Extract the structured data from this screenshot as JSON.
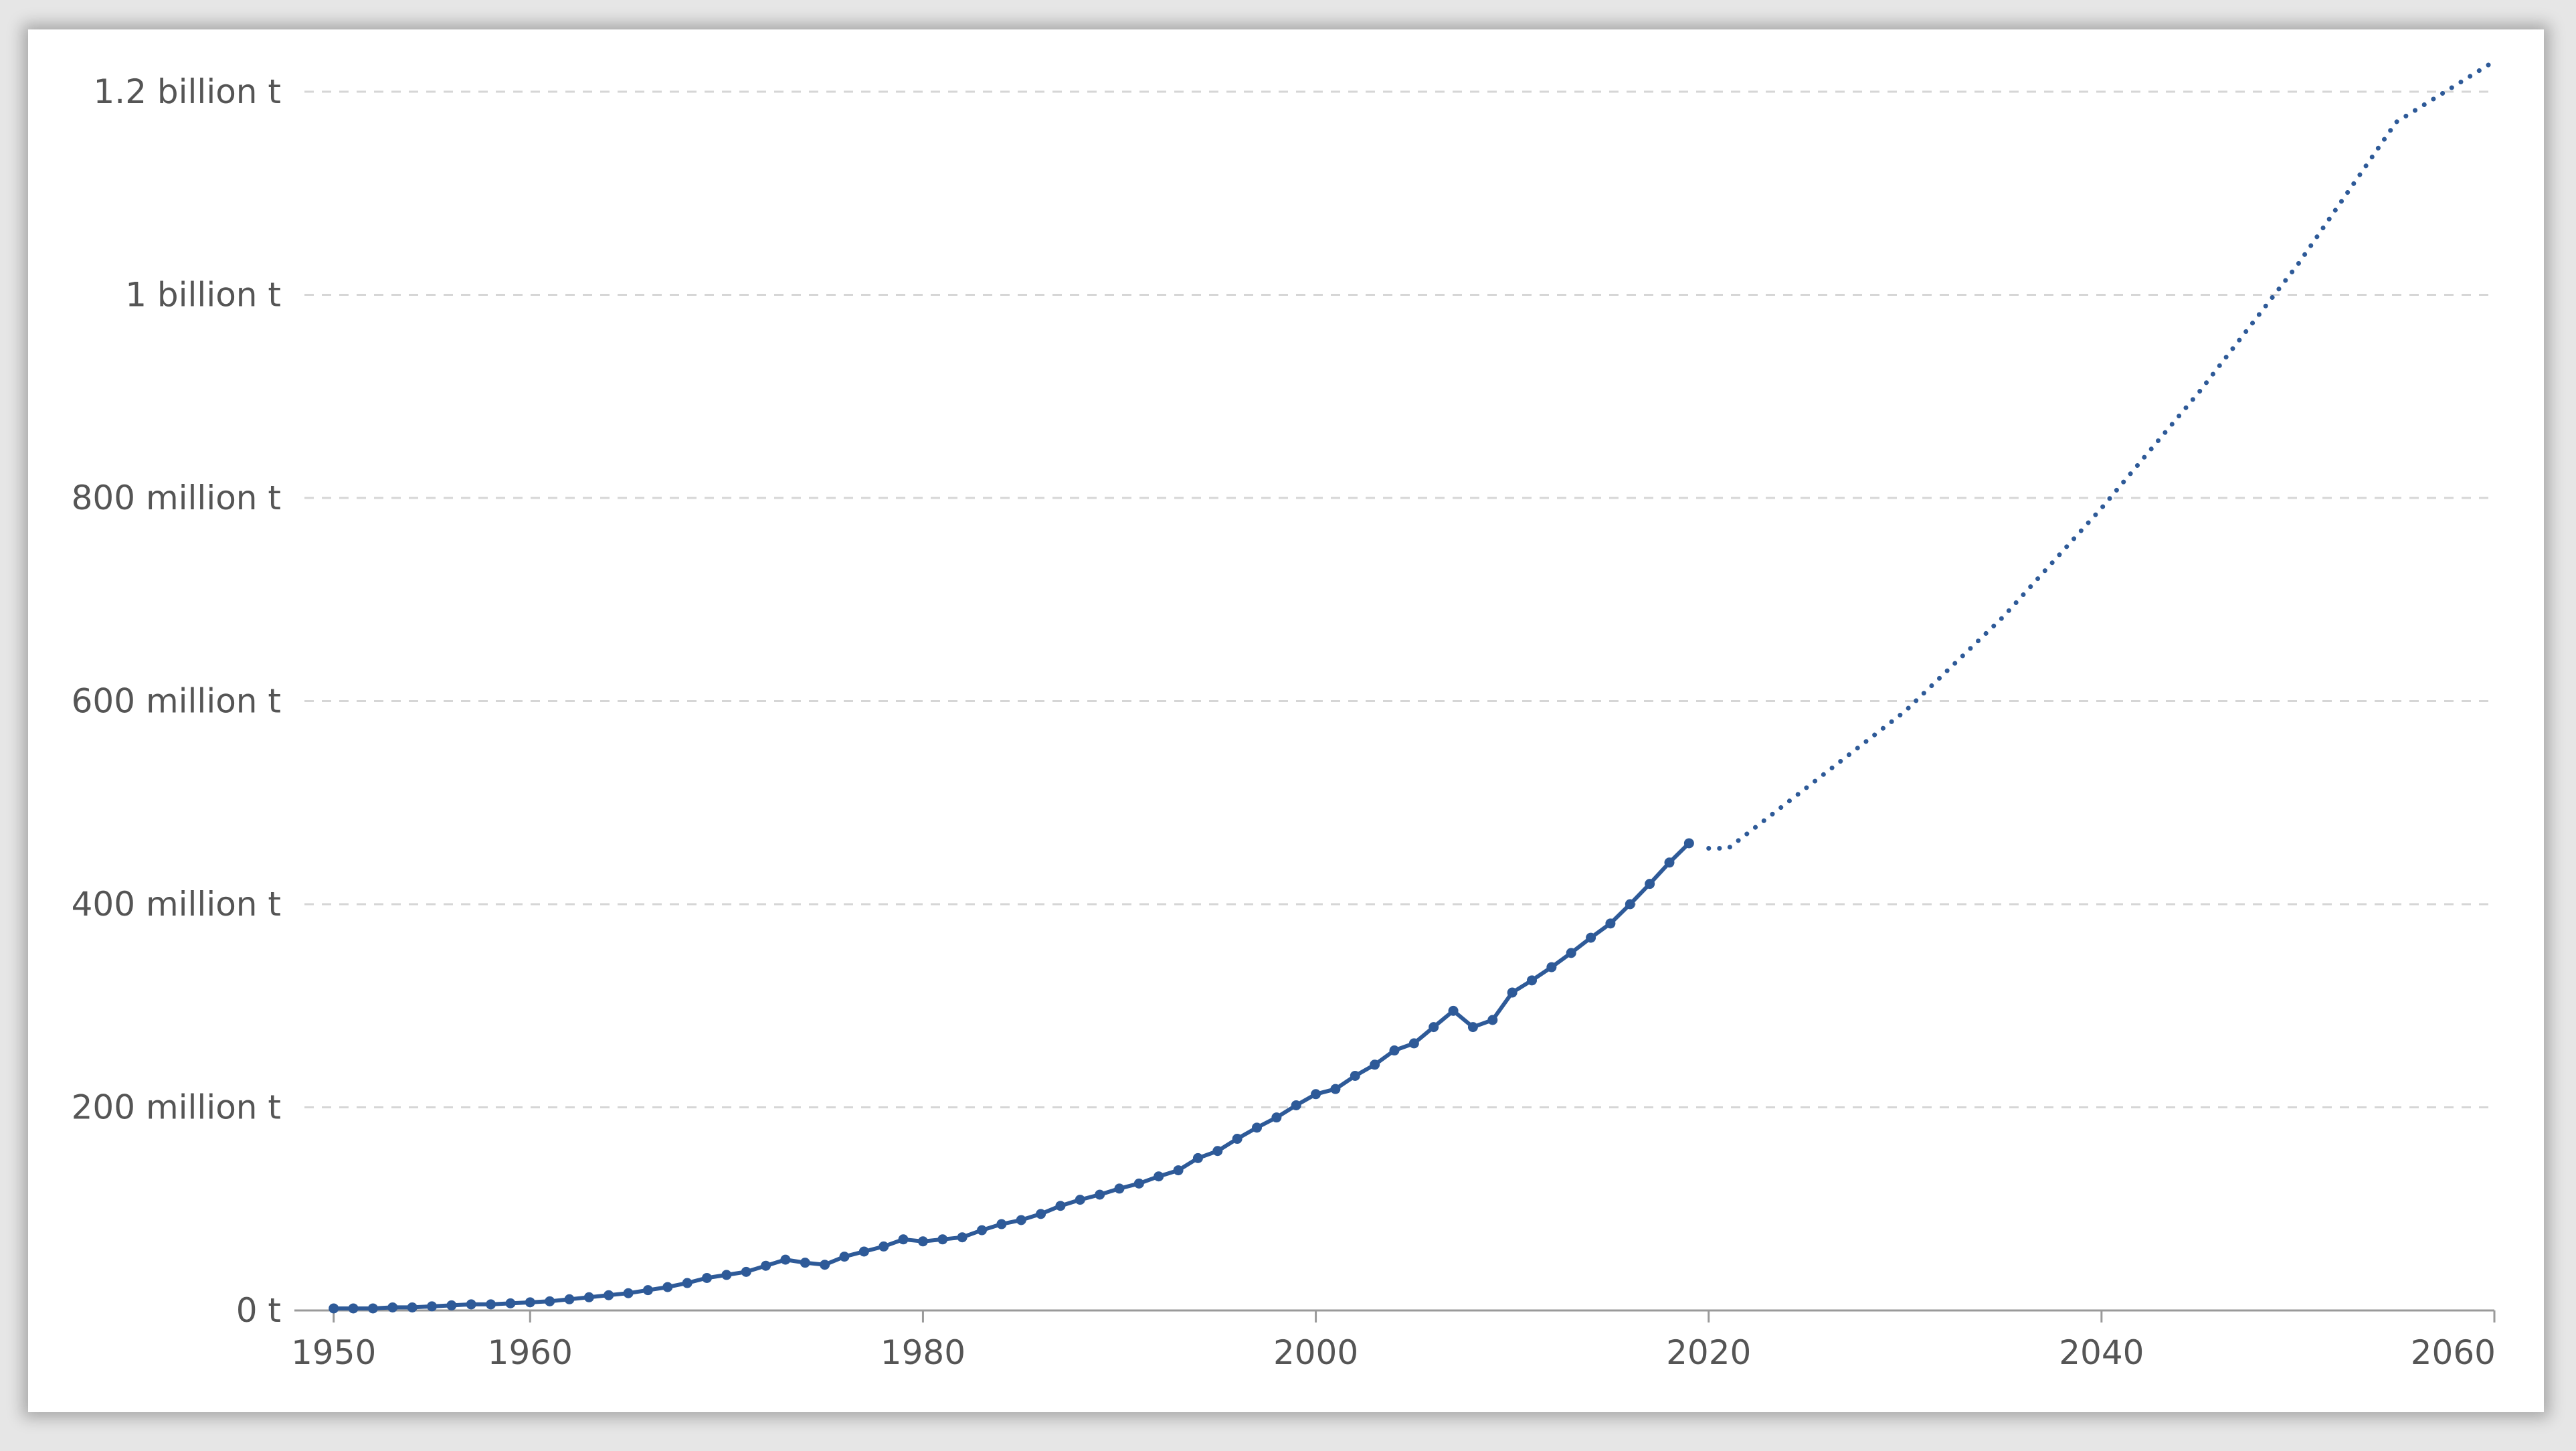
{
  "chart_data": {
    "type": "line",
    "title": "",
    "xlabel": "",
    "ylabel": "",
    "xlim": [
      1948,
      2060
    ],
    "ylim": [
      0,
      1200000000
    ],
    "grid": true,
    "legend": "none",
    "y_ticks": [
      {
        "value": 0,
        "label": "0 t"
      },
      {
        "value": 200000000,
        "label": "200 million t"
      },
      {
        "value": 400000000,
        "label": "400 million t"
      },
      {
        "value": 600000000,
        "label": "600 million t"
      },
      {
        "value": 800000000,
        "label": "800 million t"
      },
      {
        "value": 1000000000,
        "label": "1 billion t"
      },
      {
        "value": 1200000000,
        "label": "1.2 billion t"
      }
    ],
    "x_ticks": [
      {
        "value": 1950,
        "label": "1950"
      },
      {
        "value": 1960,
        "label": "1960"
      },
      {
        "value": 1980,
        "label": "1980"
      },
      {
        "value": 2000,
        "label": "2000"
      },
      {
        "value": 2020,
        "label": "2020"
      },
      {
        "value": 2040,
        "label": "2040"
      },
      {
        "value": 2060,
        "label": "2060"
      }
    ],
    "series": [
      {
        "style": "solid",
        "color": "#2e5a98",
        "markers": true,
        "x": [
          1950,
          1951,
          1952,
          1953,
          1954,
          1955,
          1956,
          1957,
          1958,
          1959,
          1960,
          1961,
          1962,
          1963,
          1964,
          1965,
          1966,
          1967,
          1968,
          1969,
          1970,
          1971,
          1972,
          1973,
          1974,
          1975,
          1976,
          1977,
          1978,
          1979,
          1980,
          1981,
          1982,
          1983,
          1984,
          1985,
          1986,
          1987,
          1988,
          1989,
          1990,
          1991,
          1992,
          1993,
          1994,
          1995,
          1996,
          1997,
          1998,
          1999,
          2000,
          2001,
          2002,
          2003,
          2004,
          2005,
          2006,
          2007,
          2008,
          2009,
          2010,
          2011,
          2012,
          2013,
          2014,
          2015,
          2016,
          2017,
          2018,
          2019
        ],
        "y": [
          2000000,
          2000000,
          2000000,
          3000000,
          3000000,
          4000000,
          5000000,
          6000000,
          6000000,
          7000000,
          8000000,
          9000000,
          11000000,
          13000000,
          15000000,
          17000000,
          20000000,
          23000000,
          27000000,
          32000000,
          35000000,
          38000000,
          44000000,
          50000000,
          47000000,
          45000000,
          53000000,
          58000000,
          63000000,
          70000000,
          68000000,
          70000000,
          72000000,
          79000000,
          85000000,
          89000000,
          95000000,
          103000000,
          109000000,
          114000000,
          120000000,
          125000000,
          132000000,
          138000000,
          150000000,
          157000000,
          169000000,
          180000000,
          190000000,
          202000000,
          213000000,
          218000000,
          231000000,
          242000000,
          256000000,
          263000000,
          279000000,
          295000000,
          279000000,
          286000000,
          313000000,
          325000000,
          338000000,
          352000000,
          367000000,
          381000000,
          400000000,
          420000000,
          441000000,
          460000000
        ]
      },
      {
        "style": "dotted",
        "color": "#2e5a98",
        "markers": false,
        "x": [
          2020,
          2021,
          2025,
          2030,
          2035,
          2040,
          2045,
          2050,
          2055,
          2060
        ],
        "y": [
          455000000,
          455000000,
          515000000,
          590000000,
          683000000,
          790000000,
          905000000,
          1030000000,
          1170000000,
          1230000000
        ]
      }
    ]
  }
}
